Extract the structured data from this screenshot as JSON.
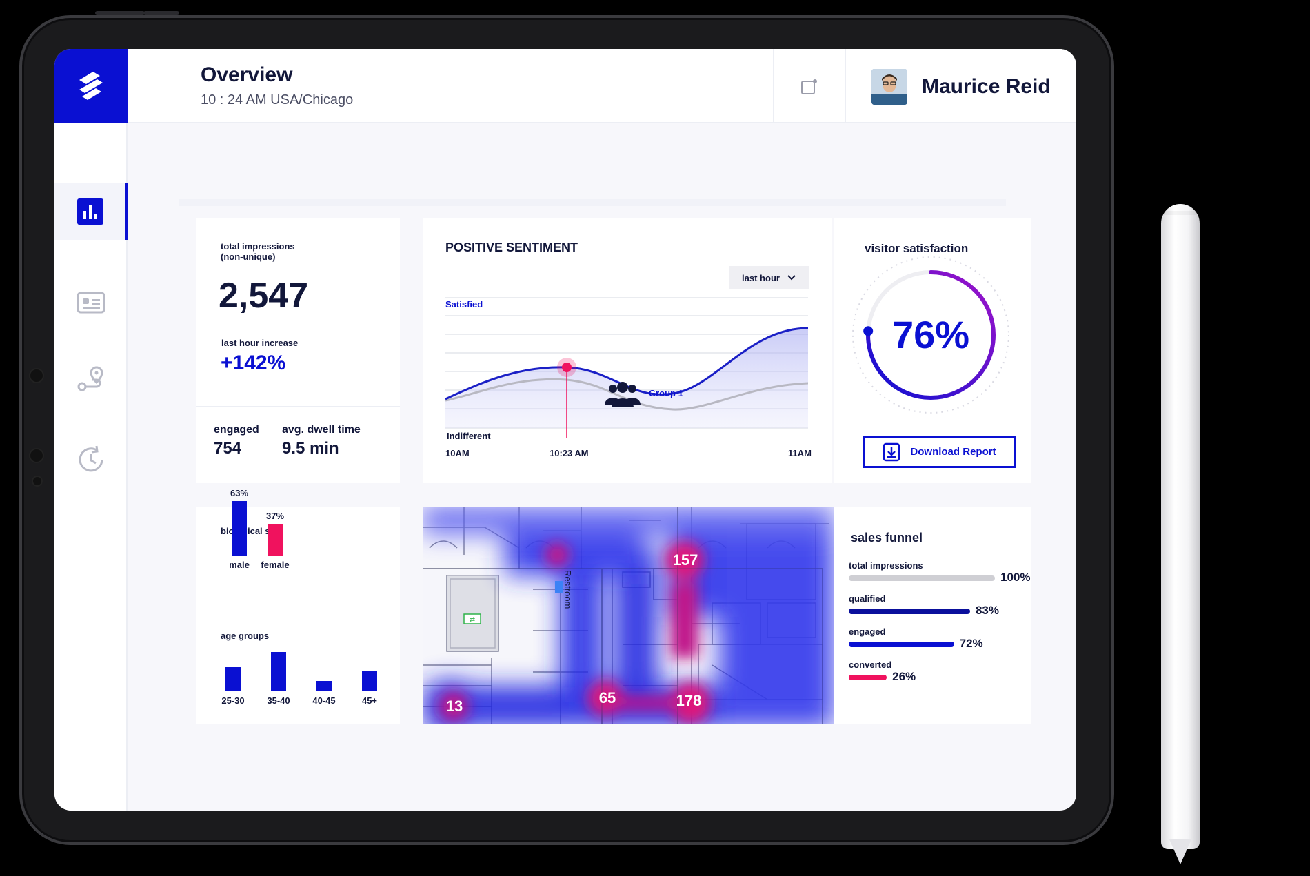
{
  "header": {
    "title": "Overview",
    "subtitle": "10 : 24 AM USA/Chicago",
    "user_name": "Maurice Reid"
  },
  "sidebar": {
    "items": [
      {
        "icon": "bar-chart-icon",
        "active": true
      },
      {
        "icon": "id-card-icon",
        "active": false
      },
      {
        "icon": "route-pin-icon",
        "active": false
      },
      {
        "icon": "history-clock-icon",
        "active": false
      }
    ]
  },
  "impressions": {
    "label": "total impressions",
    "label_sub": "(non-unique)",
    "value": "2,547",
    "increase_label": "last hour increase",
    "increase_value": "+142%",
    "engaged_label": "engaged",
    "engaged_value": "754",
    "dwell_label": "avg. dwell time",
    "dwell_value": "9.5 min"
  },
  "sentiment": {
    "title": "POSITIVE SENTIMENT",
    "filter": "last hour",
    "top_label": "Satisfied",
    "bottom_label": "Indifferent",
    "group_label": "Group 1",
    "x_ticks": [
      "10AM",
      "10:23 AM",
      "11AM"
    ]
  },
  "satisfaction": {
    "title": "visitor satisfaction",
    "value": "76%",
    "percent": 76,
    "button": "Download Report"
  },
  "demographics": {
    "sex_title": "biological sex",
    "sex": [
      {
        "label": "male",
        "percent_label": "63%",
        "value": 63,
        "color": "#0a10d2"
      },
      {
        "label": "female",
        "percent_label": "37%",
        "value": 37,
        "color": "#f0125e"
      }
    ],
    "age_title": "age groups",
    "ages": [
      {
        "label": "25-30",
        "value": 0.6
      },
      {
        "label": "35-40",
        "value": 1.0
      },
      {
        "label": "40-45",
        "value": 0.25
      },
      {
        "label": "45+",
        "value": 0.52
      }
    ]
  },
  "heatmap": {
    "room_label": "Restroom",
    "hotspots": [
      "157",
      "65",
      "178",
      "13"
    ]
  },
  "funnel": {
    "title": "sales funnel",
    "stages": [
      {
        "label": "total impressions",
        "value_label": "100%",
        "value": 100,
        "color": "#cfcfd4"
      },
      {
        "label": "qualified",
        "value_label": "83%",
        "value": 83,
        "color": "#0a0f9c"
      },
      {
        "label": "engaged",
        "value_label": "72%",
        "value": 72,
        "color": "#0a10d2"
      },
      {
        "label": "converted",
        "value_label": "26%",
        "value": 26,
        "color": "#f0125e"
      }
    ]
  },
  "colors": {
    "brand_blue": "#0a10d2",
    "accent_pink": "#f0125e",
    "purple": "#8a16c7",
    "text_dark": "#12173a"
  }
}
